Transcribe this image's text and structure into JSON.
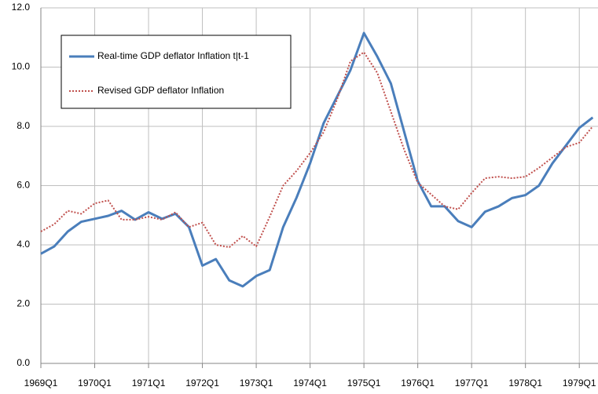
{
  "chart_data": {
    "type": "line",
    "categories": [
      "1969Q1",
      null,
      null,
      null,
      "1970Q1",
      null,
      null,
      null,
      "1971Q1",
      null,
      null,
      null,
      "1972Q1",
      null,
      null,
      null,
      "1973Q1",
      null,
      null,
      null,
      "1974Q1",
      null,
      null,
      null,
      "1975Q1",
      null,
      null,
      null,
      "1976Q1",
      null,
      null,
      null,
      "1977Q1",
      null,
      null,
      null,
      "1978Q1",
      null,
      null,
      null,
      "1979Q1",
      null
    ],
    "series": [
      {
        "name": "Real-time GDP deflator Inflation t|t-1",
        "color": "#4a7ebb",
        "dash": "solid",
        "values": [
          3.7,
          3.95,
          4.45,
          4.78,
          4.88,
          4.98,
          5.15,
          4.85,
          5.1,
          4.88,
          5.05,
          4.6,
          3.3,
          3.52,
          2.8,
          2.6,
          2.95,
          3.15,
          4.6,
          5.6,
          6.75,
          8.1,
          9.0,
          9.9,
          11.15,
          10.35,
          9.45,
          7.8,
          6.15,
          5.3,
          5.3,
          4.8,
          4.6,
          5.12,
          5.3,
          5.58,
          5.68,
          6.0,
          6.75,
          7.35,
          7.95,
          8.3
        ]
      },
      {
        "name": "Revised GDP deflator Inflation",
        "color": "#c0504d",
        "dash": "dotted",
        "values": [
          4.45,
          4.7,
          5.15,
          5.05,
          5.4,
          5.5,
          4.85,
          4.85,
          4.95,
          4.85,
          5.1,
          4.6,
          4.75,
          4.0,
          3.92,
          4.3,
          3.95,
          4.95,
          6.0,
          6.5,
          7.1,
          7.8,
          8.9,
          10.2,
          10.5,
          9.8,
          8.5,
          7.2,
          6.1,
          5.7,
          5.3,
          5.2,
          5.75,
          6.25,
          6.3,
          6.25,
          6.3,
          6.6,
          6.95,
          7.3,
          7.45,
          8.0
        ]
      }
    ],
    "ylim": [
      0,
      12
    ],
    "yticks": [
      {
        "value": 0,
        "label": "0.0"
      },
      {
        "value": 2,
        "label": "2.0"
      },
      {
        "value": 4,
        "label": "4.0"
      },
      {
        "value": 6,
        "label": "6.0"
      },
      {
        "value": 8,
        "label": "8.0"
      },
      {
        "value": 10,
        "label": "10.0"
      },
      {
        "value": 12,
        "label": "12.0"
      }
    ],
    "grid": true
  }
}
